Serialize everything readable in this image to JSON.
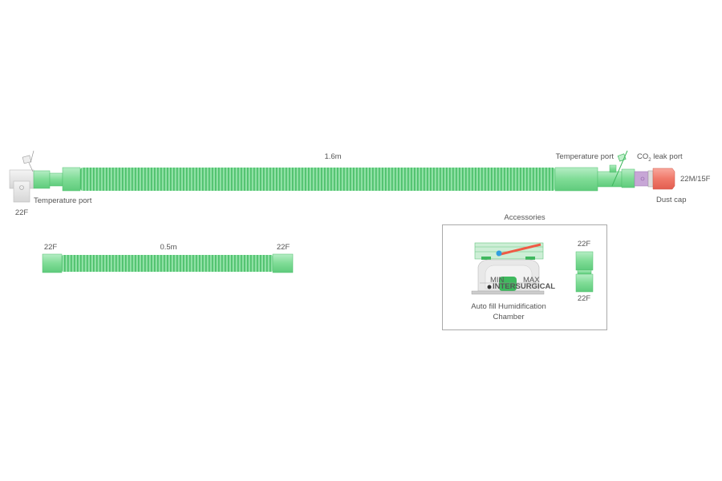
{
  "main_circuit": {
    "length_label": "1.6m",
    "left_connector_label": "22F",
    "left_temperature_port_label": "Temperature port",
    "right_temperature_port_label": "Temperature port",
    "co2_leak_port_label": "CO",
    "co2_subscript": "2",
    "co2_leak_port_suffix": " leak port",
    "right_connector_label": "22M/15F",
    "dust_cap_label": "Dust cap"
  },
  "extension_tube": {
    "left_label": "22F",
    "length_label": "0.5m",
    "right_label": "22F"
  },
  "accessories": {
    "title": "Accessories",
    "chamber_label_line1": "Auto fill Humidification",
    "chamber_label_line2": "Chamber",
    "chamber_brand": "INTERSURGICAL",
    "chamber_min": "MIN",
    "chamber_max": "MAX",
    "connector_top_label": "22F",
    "connector_bottom_label": "22F"
  },
  "colors": {
    "tube_green": "#7fdc96",
    "tube_dark": "#3fb85e",
    "cap_red": "#f0796a",
    "port_purple": "#b98ccc",
    "elbow_gray": "#e4e4e4"
  }
}
